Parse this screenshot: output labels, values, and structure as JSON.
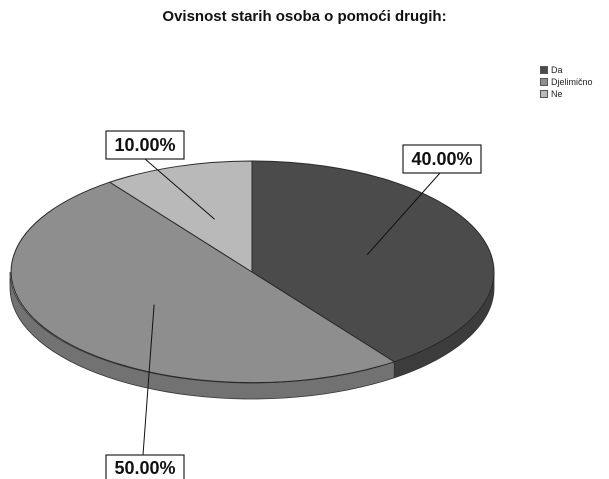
{
  "chart_data": {
    "type": "pie",
    "title": "Ovisnost starih osoba o pomoći drugih:",
    "categories": [
      "Da",
      "Djelimično",
      "Ne"
    ],
    "values": [
      40,
      50,
      10
    ],
    "data_labels": [
      "40.00%",
      "50.00%",
      "10.00%"
    ],
    "colors": [
      "#4b4b4b",
      "#8e8e8e",
      "#b9b9b9"
    ],
    "legend_position": "top-right",
    "style": "3d-tilted"
  }
}
